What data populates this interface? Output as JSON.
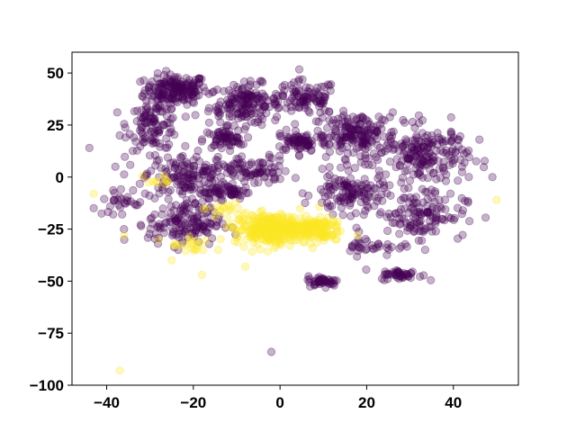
{
  "chart_data": {
    "type": "scatter",
    "title": "",
    "xlabel": "",
    "ylabel": "",
    "xlim": [
      -48,
      55
    ],
    "ylim": [
      -100,
      60
    ],
    "xticks": [
      -40,
      -20,
      0,
      20,
      40
    ],
    "yticks": [
      -100,
      -75,
      -50,
      -25,
      0,
      25,
      50
    ],
    "xtick_labels": [
      "−40",
      "−20",
      "0",
      "20",
      "40"
    ],
    "ytick_labels": [
      "−100",
      "−75",
      "−50",
      "−25",
      "0",
      "25",
      "50"
    ],
    "grid": false,
    "legend": "none",
    "marker_alpha": 0.3,
    "series": [
      {
        "color": "#440154",
        "clusters": [
          {
            "center": [
              -24,
              42
            ],
            "spread": [
              6,
              6
            ],
            "count": 170
          },
          {
            "center": [
              -8,
              35
            ],
            "spread": [
              7,
              8
            ],
            "count": 170
          },
          {
            "center": [
              6,
              38
            ],
            "spread": [
              6,
              7
            ],
            "count": 90
          },
          {
            "center": [
              -29,
              25
            ],
            "spread": [
              5,
              10
            ],
            "count": 110
          },
          {
            "center": [
              -13,
              18
            ],
            "spread": [
              4,
              4
            ],
            "count": 60
          },
          {
            "center": [
              5,
              17
            ],
            "spread": [
              5,
              4
            ],
            "count": 70
          },
          {
            "center": [
              -22,
              0
            ],
            "spread": [
              8,
              9
            ],
            "count": 150
          },
          {
            "center": [
              -6,
              3
            ],
            "spread": [
              7,
              6
            ],
            "count": 80
          },
          {
            "center": [
              18,
              20
            ],
            "spread": [
              8,
              9
            ],
            "count": 190
          },
          {
            "center": [
              34,
              10
            ],
            "spread": [
              8,
              12
            ],
            "count": 190
          },
          {
            "center": [
              16,
              -8
            ],
            "spread": [
              7,
              8
            ],
            "count": 120
          },
          {
            "center": [
              32,
              -18
            ],
            "spread": [
              9,
              9
            ],
            "count": 120
          },
          {
            "center": [
              -22,
              -22
            ],
            "spread": [
              7,
              9
            ],
            "count": 150
          },
          {
            "center": [
              -12,
              -7
            ],
            "spread": [
              4,
              3
            ],
            "count": 50
          },
          {
            "center": [
              10,
              -50
            ],
            "spread": [
              3,
              2
            ],
            "count": 45
          },
          {
            "center": [
              28,
              -47
            ],
            "spread": [
              4,
              2
            ],
            "count": 45
          },
          {
            "center": [
              -37,
              -12
            ],
            "spread": [
              4,
              6
            ],
            "count": 25
          },
          {
            "center": [
              22,
              -33
            ],
            "spread": [
              7,
              4
            ],
            "count": 35
          }
        ],
        "points": [
          [
            -44,
            14
          ],
          [
            -43,
            -15
          ],
          [
            -38,
            5
          ],
          [
            -36,
            -25
          ],
          [
            -37,
            20
          ],
          [
            46,
            18
          ],
          [
            49,
            0
          ],
          [
            -2,
            -84
          ]
        ]
      },
      {
        "color": "#fde725",
        "clusters": [
          {
            "center": [
              -2,
              -25
            ],
            "spread": [
              7,
              6
            ],
            "count": 320
          },
          {
            "center": [
              8,
              -25
            ],
            "spread": [
              5,
              5
            ],
            "count": 120
          },
          {
            "center": [
              -20,
              -33
            ],
            "spread": [
              4,
              4
            ],
            "count": 20
          },
          {
            "center": [
              -28,
              -2
            ],
            "spread": [
              3,
              2
            ],
            "count": 10
          },
          {
            "center": [
              -14,
              -15
            ],
            "spread": [
              3,
              3
            ],
            "count": 15
          }
        ],
        "points": [
          [
            -43,
            -8
          ],
          [
            -37,
            -93
          ],
          [
            -36,
            -28
          ],
          [
            -25,
            -40
          ],
          [
            -18,
            -47
          ],
          [
            50,
            -11
          ],
          [
            -8,
            -43
          ],
          [
            -28,
            -30
          ]
        ]
      }
    ]
  }
}
